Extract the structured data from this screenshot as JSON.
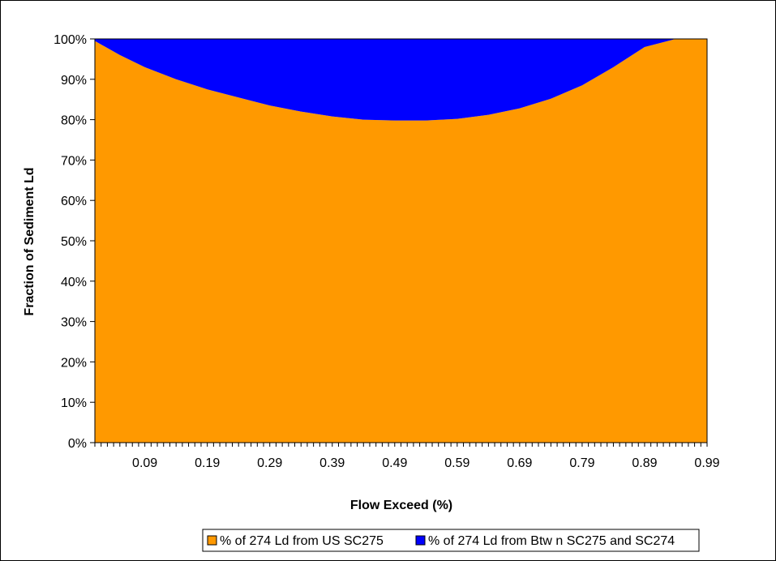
{
  "chart_data": {
    "type": "area",
    "stacked": true,
    "percent_stacked": true,
    "xlabel": "Flow Exceed (%)",
    "ylabel": "Fraction of Sediment Ld",
    "x_range": [
      0.01,
      0.99
    ],
    "x_tick_labels": [
      "0.09",
      "0.19",
      "0.29",
      "0.39",
      "0.49",
      "0.59",
      "0.69",
      "0.79",
      "0.89",
      "0.99"
    ],
    "y_tick_labels": [
      "0%",
      "10%",
      "20%",
      "30%",
      "40%",
      "50%",
      "60%",
      "70%",
      "80%",
      "90%",
      "100%"
    ],
    "ylim": [
      0,
      100
    ],
    "legend_position": "bottom",
    "x": [
      0.01,
      0.05,
      0.09,
      0.14,
      0.19,
      0.24,
      0.29,
      0.34,
      0.39,
      0.44,
      0.49,
      0.54,
      0.59,
      0.64,
      0.69,
      0.74,
      0.79,
      0.84,
      0.89,
      0.94,
      0.99
    ],
    "series": [
      {
        "name": "% of 274 Ld from US SC275",
        "color": "#FF9900",
        "values": [
          99.5,
          96.0,
          93.0,
          90.0,
          87.5,
          85.5,
          83.5,
          82.0,
          80.8,
          80.0,
          79.8,
          79.8,
          80.2,
          81.2,
          82.8,
          85.2,
          88.5,
          93.0,
          98.0,
          100,
          100
        ]
      },
      {
        "name": "% of 274 Ld from Btw n SC275 and SC274",
        "color": "#0000FF",
        "values": [
          0.5,
          4.0,
          7.0,
          10.0,
          12.5,
          14.5,
          16.5,
          18.0,
          19.2,
          20.0,
          20.2,
          20.2,
          19.8,
          18.8,
          17.2,
          14.8,
          11.5,
          7.0,
          2.0,
          0,
          0
        ]
      }
    ]
  }
}
